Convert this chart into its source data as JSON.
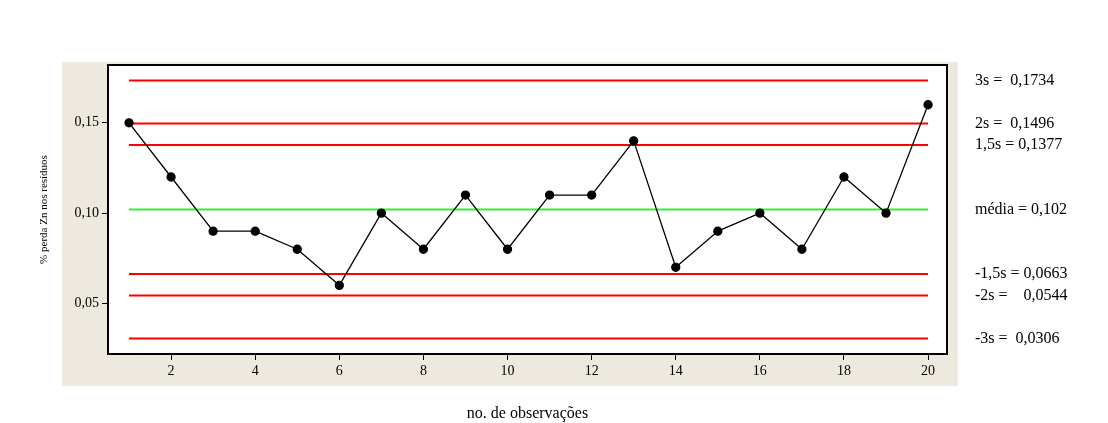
{
  "chart_data": {
    "type": "line",
    "xlabel": "no. de observações",
    "ylabel": "% perda Zn nos resíduos",
    "x": [
      1,
      2,
      3,
      4,
      5,
      6,
      7,
      8,
      9,
      10,
      11,
      12,
      13,
      14,
      15,
      16,
      17,
      18,
      19,
      20
    ],
    "series": [
      {
        "color": "#000000",
        "values": [
          0.15,
          0.12,
          0.09,
          0.09,
          0.08,
          0.06,
          0.1,
          0.08,
          0.11,
          0.08,
          0.11,
          0.11,
          0.14,
          0.07,
          0.09,
          0.1,
          0.08,
          0.12,
          0.1,
          0.16
        ]
      }
    ],
    "xlim": [
      0.5,
      20.45
    ],
    "xticks": [
      2,
      4,
      6,
      8,
      10,
      12,
      14,
      16,
      18,
      20
    ],
    "ylim": [
      0.022,
      0.182
    ],
    "yticks": [
      {
        "value": 0.05,
        "label": "0,05"
      },
      {
        "value": 0.1,
        "label": "0,10"
      },
      {
        "value": 0.15,
        "label": "0,15"
      }
    ],
    "ref_lines": [
      {
        "axis": "y",
        "value": 0.1734,
        "label": "3s =  0,1734",
        "color": "#ff0000"
      },
      {
        "axis": "y",
        "value": 0.1496,
        "label": "2s =  0,1496",
        "color": "#ff0000"
      },
      {
        "axis": "y",
        "value": 0.1377,
        "label": "1,5s = 0,1377",
        "color": "#ff0000"
      },
      {
        "axis": "y",
        "value": 0.102,
        "label": "média = 0,102",
        "color": "#33ee33"
      },
      {
        "axis": "y",
        "value": 0.0663,
        "label": "-1,5s = 0,0663",
        "color": "#ff0000"
      },
      {
        "axis": "y",
        "value": 0.0544,
        "label": "-2s =    0,0544",
        "color": "#ff0000"
      },
      {
        "axis": "y",
        "value": 0.0306,
        "label": "-3s =  0,0306",
        "color": "#ff0000"
      }
    ],
    "grid": false,
    "legend": false,
    "marker": "circle",
    "line_style": "solid"
  }
}
